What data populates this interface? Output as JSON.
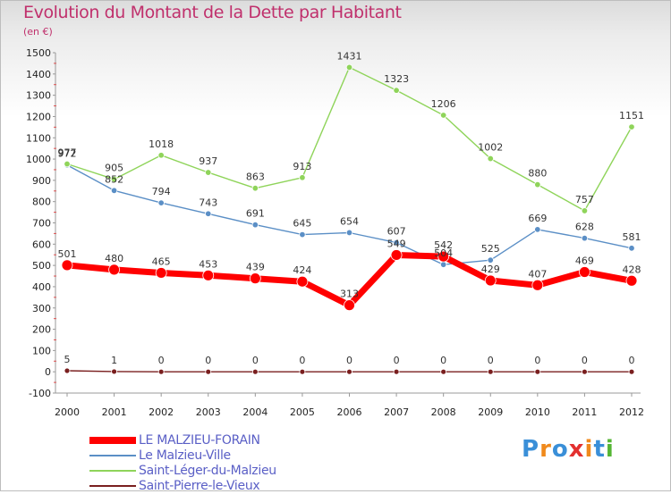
{
  "header": {
    "title": "Evolution du Montant de la Dette par Habitant",
    "subtitle": "(en €)"
  },
  "logo": {
    "text": "Proxiti",
    "colors": [
      "#3a8fd8",
      "#f08a1c",
      "#3a8fd8",
      "#e3302f",
      "#f08a1c",
      "#3a8fd8",
      "#55b534"
    ]
  },
  "chart_data": {
    "type": "line",
    "x": [
      "2000",
      "2001",
      "2002",
      "2003",
      "2004",
      "2005",
      "2006",
      "2007",
      "2008",
      "2009",
      "2010",
      "2011",
      "2012"
    ],
    "ylim": [
      -100,
      1500
    ],
    "yticks": [
      -100,
      0,
      100,
      200,
      300,
      400,
      500,
      600,
      700,
      800,
      900,
      1000,
      1100,
      1200,
      1300,
      1400,
      1500
    ],
    "grid": false,
    "legend_position": "bottom-left",
    "series": [
      {
        "name": "Saint-Pierre-le-Vieux",
        "color": "#7a1f1f",
        "values": [
          5,
          1,
          0,
          0,
          0,
          0,
          0,
          0,
          0,
          0,
          0,
          0,
          0
        ]
      },
      {
        "name": "Le Malzieu-Ville",
        "color": "#5b8fc6",
        "values": [
          972,
          852,
          794,
          743,
          691,
          645,
          654,
          607,
          504,
          525,
          669,
          628,
          581
        ]
      },
      {
        "name": "Saint-Léger-du-Malzieu",
        "color": "#8fd45a",
        "values": [
          977,
          905,
          1018,
          937,
          863,
          913,
          1431,
          1323,
          1206,
          1002,
          880,
          757,
          1151
        ]
      },
      {
        "name": "LE MALZIEU-FORAIN",
        "color": "#ff0000",
        "values": [
          501,
          480,
          465,
          453,
          439,
          424,
          313,
          549,
          542,
          429,
          407,
          469,
          428
        ]
      }
    ],
    "legend_order": [
      "LE MALZIEU-FORAIN",
      "Le Malzieu-Ville",
      "Saint-Léger-du-Malzieu",
      "Saint-Pierre-le-Vieux"
    ]
  }
}
